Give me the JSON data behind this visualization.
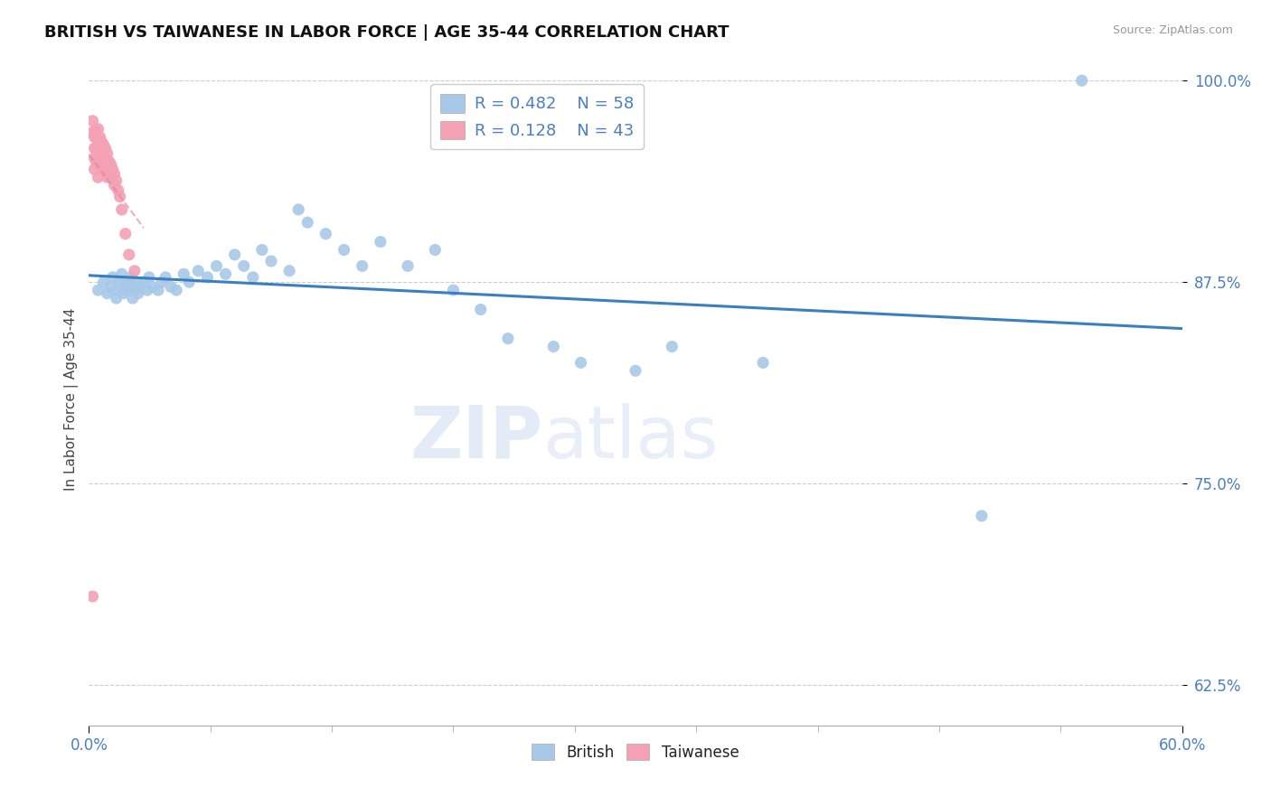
{
  "title": "BRITISH VS TAIWANESE IN LABOR FORCE | AGE 35-44 CORRELATION CHART",
  "source": "Source: ZipAtlas.com",
  "ylabel": "In Labor Force | Age 35-44",
  "xlim": [
    0.0,
    0.6
  ],
  "ylim": [
    0.6,
    1.005
  ],
  "yticks": [
    0.625,
    0.75,
    0.875,
    1.0
  ],
  "ytick_labels": [
    "62.5%",
    "75.0%",
    "87.5%",
    "100.0%"
  ],
  "british_color": "#a8c8e8",
  "taiwanese_color": "#f4a0b5",
  "british_line_color": "#3a7fc1",
  "taiwanese_line_color": "#e08090",
  "legend_british_R": "0.482",
  "legend_british_N": "58",
  "legend_taiwanese_R": "0.128",
  "legend_taiwanese_N": "43",
  "watermark_zip": "ZIP",
  "watermark_atlas": "atlas",
  "british_x": [
    0.005,
    0.008,
    0.01,
    0.012,
    0.013,
    0.015,
    0.016,
    0.017,
    0.018,
    0.019,
    0.02,
    0.021,
    0.022,
    0.023,
    0.024,
    0.025,
    0.026,
    0.027,
    0.028,
    0.03,
    0.032,
    0.033,
    0.035,
    0.038,
    0.04,
    0.042,
    0.045,
    0.048,
    0.052,
    0.055,
    0.06,
    0.065,
    0.07,
    0.075,
    0.08,
    0.085,
    0.09,
    0.095,
    0.1,
    0.11,
    0.115,
    0.12,
    0.13,
    0.14,
    0.15,
    0.16,
    0.175,
    0.19,
    0.2,
    0.215,
    0.23,
    0.255,
    0.27,
    0.3,
    0.32,
    0.37,
    0.49,
    0.545
  ],
  "british_y": [
    0.87,
    0.875,
    0.868,
    0.872,
    0.878,
    0.865,
    0.87,
    0.875,
    0.88,
    0.868,
    0.875,
    0.87,
    0.872,
    0.878,
    0.865,
    0.87,
    0.875,
    0.868,
    0.872,
    0.875,
    0.87,
    0.878,
    0.872,
    0.87,
    0.875,
    0.878,
    0.872,
    0.87,
    0.88,
    0.875,
    0.882,
    0.878,
    0.885,
    0.88,
    0.892,
    0.885,
    0.878,
    0.895,
    0.888,
    0.882,
    0.92,
    0.912,
    0.905,
    0.895,
    0.885,
    0.9,
    0.885,
    0.895,
    0.87,
    0.858,
    0.84,
    0.835,
    0.825,
    0.82,
    0.835,
    0.825,
    0.73,
    1.0
  ],
  "taiwanese_x": [
    0.002,
    0.002,
    0.003,
    0.003,
    0.003,
    0.003,
    0.004,
    0.004,
    0.004,
    0.005,
    0.005,
    0.005,
    0.005,
    0.005,
    0.006,
    0.006,
    0.006,
    0.007,
    0.007,
    0.007,
    0.008,
    0.008,
    0.008,
    0.009,
    0.009,
    0.01,
    0.01,
    0.01,
    0.011,
    0.011,
    0.012,
    0.012,
    0.013,
    0.014,
    0.014,
    0.015,
    0.016,
    0.017,
    0.018,
    0.02,
    0.022,
    0.025,
    0.002
  ],
  "taiwanese_y": [
    0.975,
    0.968,
    0.965,
    0.958,
    0.952,
    0.945,
    0.968,
    0.958,
    0.95,
    0.97,
    0.963,
    0.956,
    0.948,
    0.94,
    0.965,
    0.958,
    0.95,
    0.962,
    0.955,
    0.948,
    0.96,
    0.952,
    0.945,
    0.958,
    0.95,
    0.955,
    0.948,
    0.94,
    0.95,
    0.943,
    0.948,
    0.94,
    0.945,
    0.942,
    0.935,
    0.938,
    0.932,
    0.928,
    0.92,
    0.905,
    0.892,
    0.882,
    0.68
  ]
}
